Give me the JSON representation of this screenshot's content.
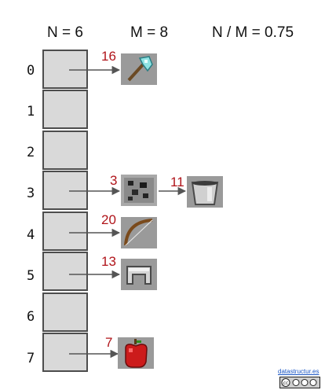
{
  "header": {
    "n_label": "N = 6",
    "m_label": "M = 8",
    "ratio_label": "N / M = 0.75"
  },
  "table": {
    "slots": [
      {
        "index": "0",
        "entries": [
          {
            "key": "16",
            "icon": "axe-icon"
          }
        ]
      },
      {
        "index": "1",
        "entries": []
      },
      {
        "index": "2",
        "entries": []
      },
      {
        "index": "3",
        "entries": [
          {
            "key": "3",
            "icon": "coal-ore-icon"
          },
          {
            "key": "11",
            "icon": "bucket-icon"
          }
        ]
      },
      {
        "index": "4",
        "entries": [
          {
            "key": "20",
            "icon": "bow-icon"
          }
        ]
      },
      {
        "index": "5",
        "entries": [
          {
            "key": "13",
            "icon": "helmet-icon"
          }
        ]
      },
      {
        "index": "6",
        "entries": []
      },
      {
        "index": "7",
        "entries": [
          {
            "key": "7",
            "icon": "apple-icon"
          }
        ]
      }
    ]
  },
  "footer": {
    "site_label": "datastructur.es"
  },
  "colors": {
    "key_color": "#b0141a",
    "slot_fill": "#d9d9d9",
    "arrow": "#555555"
  }
}
